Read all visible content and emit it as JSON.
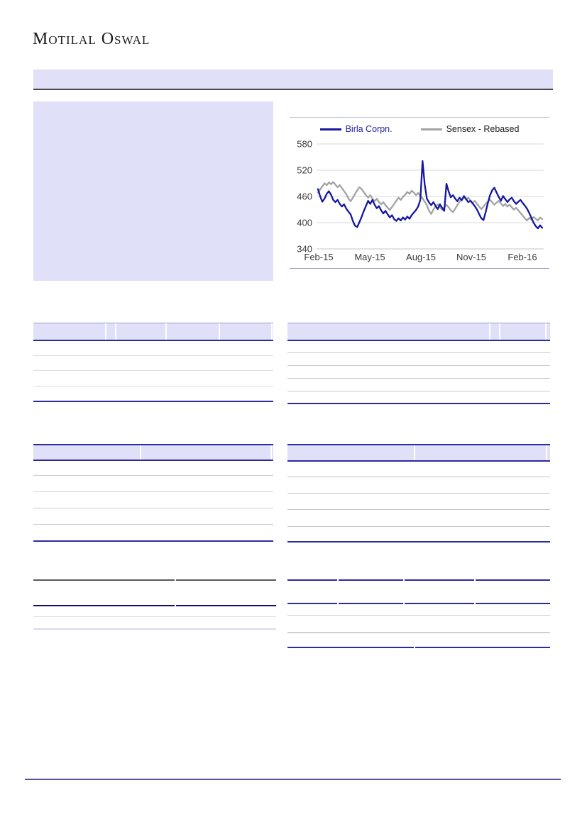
{
  "brand": {
    "name": "Motilal Oswal"
  },
  "colors": {
    "accent_fill": "#E0E0F8",
    "table_border_navy": "#2B2B9C",
    "banner_underline": "#4A4A4A",
    "footer_rule_purple": "#5E4FA5",
    "series_primary": "#16169E",
    "series_secondary": "#A3A3A3"
  },
  "chart_data": {
    "type": "line",
    "title": "",
    "xlabel": "",
    "ylabel": "",
    "x_ticks": [
      "Feb-15",
      "May-15",
      "Aug-15",
      "Nov-15",
      "Feb-16"
    ],
    "y_ticks": [
      580,
      520,
      460,
      400,
      340
    ],
    "ylim": [
      340,
      580
    ],
    "grid": true,
    "legend_position": "top",
    "series": [
      {
        "name": "Birla Corpn.",
        "color": "#16169E",
        "values": [
          477,
          460,
          448,
          455,
          466,
          472,
          464,
          452,
          447,
          452,
          443,
          437,
          442,
          432,
          425,
          419,
          404,
          393,
          390,
          401,
          413,
          426,
          438,
          450,
          443,
          452,
          441,
          433,
          438,
          428,
          421,
          427,
          419,
          412,
          417,
          408,
          404,
          410,
          405,
          412,
          407,
          414,
          409,
          417,
          423,
          429,
          437,
          452,
          541,
          488,
          455,
          446,
          440,
          447,
          438,
          431,
          442,
          434,
          427,
          489,
          471,
          458,
          463,
          455,
          449,
          457,
          451,
          461,
          454,
          447,
          450,
          444,
          438,
          430,
          420,
          410,
          406,
          424,
          445,
          463,
          474,
          480,
          469,
          459,
          450,
          461,
          454,
          447,
          453,
          457,
          449,
          443,
          448,
          452,
          445,
          439,
          432,
          422,
          411,
          400,
          392,
          387,
          394,
          388
        ]
      },
      {
        "name": "Sensex - Rebased",
        "color": "#A3A3A3",
        "values": [
          469,
          476,
          483,
          490,
          486,
          492,
          488,
          493,
          487,
          481,
          486,
          479,
          472,
          465,
          455,
          449,
          457,
          466,
          474,
          481,
          477,
          470,
          463,
          457,
          463,
          455,
          449,
          455,
          447,
          442,
          447,
          440,
          434,
          429,
          436,
          443,
          450,
          457,
          452,
          459,
          464,
          470,
          466,
          473,
          469,
          463,
          468,
          461,
          456,
          448,
          440,
          427,
          420,
          430,
          437,
          442,
          436,
          429,
          435,
          441,
          435,
          428,
          424,
          432,
          440,
          448,
          454,
          459,
          453,
          457,
          451,
          445,
          450,
          443,
          437,
          431,
          437,
          443,
          448,
          452,
          447,
          441,
          446,
          450,
          444,
          438,
          443,
          437,
          441,
          435,
          430,
          434,
          428,
          422,
          416,
          410,
          405,
          411,
          407,
          413,
          409,
          405,
          412,
          408
        ]
      }
    ]
  }
}
